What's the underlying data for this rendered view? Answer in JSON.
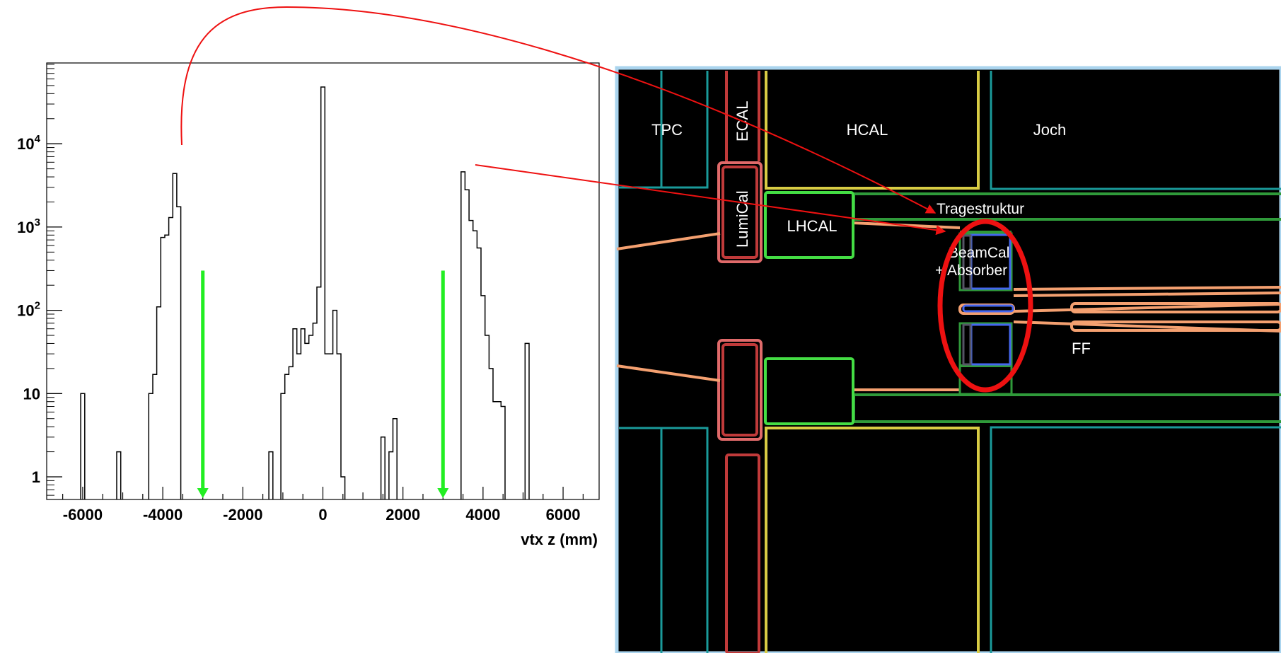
{
  "chart_data": {
    "type": "histogram",
    "xlabel": "vtx z (mm)",
    "ylabel": "",
    "title": "",
    "xlim": [
      -6900,
      6900
    ],
    "ylim": [
      0.5,
      100000
    ],
    "yscale": "log",
    "grid": false,
    "x_tick_labels": [
      "-6000",
      "-4000",
      "-2000",
      "0",
      "2000",
      "4000",
      "6000"
    ],
    "x_tick_values": [
      -6000,
      -4000,
      -2000,
      0,
      2000,
      4000,
      6000
    ],
    "y_tick_labels": [
      {
        "base": "1",
        "exp": ""
      },
      {
        "base": "10",
        "exp": ""
      },
      {
        "base": "10",
        "exp": "2"
      },
      {
        "base": "10",
        "exp": "3"
      },
      {
        "base": "10",
        "exp": "4"
      }
    ],
    "y_tick_values": [
      1,
      10,
      100,
      1000,
      10000
    ],
    "bin_width": 100,
    "bins": [
      {
        "x": -6000,
        "count": 10
      },
      {
        "x": -5100,
        "count": 2
      },
      {
        "x": -4300,
        "count": 10
      },
      {
        "x": -4200,
        "count": 17
      },
      {
        "x": -4100,
        "count": 110
      },
      {
        "x": -4000,
        "count": 750
      },
      {
        "x": -3900,
        "count": 800
      },
      {
        "x": -3800,
        "count": 1300
      },
      {
        "x": -3700,
        "count": 4400
      },
      {
        "x": -3600,
        "count": 1750
      },
      {
        "x": -1300,
        "count": 2
      },
      {
        "x": -1000,
        "count": 10
      },
      {
        "x": -900,
        "count": 17
      },
      {
        "x": -800,
        "count": 21
      },
      {
        "x": -700,
        "count": 60
      },
      {
        "x": -600,
        "count": 30
      },
      {
        "x": -500,
        "count": 60
      },
      {
        "x": -400,
        "count": 40
      },
      {
        "x": -300,
        "count": 50
      },
      {
        "x": -200,
        "count": 70
      },
      {
        "x": -100,
        "count": 190
      },
      {
        "x": 0,
        "count": 48000
      },
      {
        "x": 100,
        "count": 30
      },
      {
        "x": 200,
        "count": 30
      },
      {
        "x": 300,
        "count": 100
      },
      {
        "x": 400,
        "count": 30
      },
      {
        "x": 500,
        "count": 1
      },
      {
        "x": 1500,
        "count": 3
      },
      {
        "x": 1700,
        "count": 2
      },
      {
        "x": 1800,
        "count": 5
      },
      {
        "x": 3500,
        "count": 4600
      },
      {
        "x": 3600,
        "count": 2800
      },
      {
        "x": 3700,
        "count": 1200
      },
      {
        "x": 3800,
        "count": 900
      },
      {
        "x": 3900,
        "count": 560
      },
      {
        "x": 4000,
        "count": 150
      },
      {
        "x": 4100,
        "count": 50
      },
      {
        "x": 4200,
        "count": 20
      },
      {
        "x": 4300,
        "count": 8
      },
      {
        "x": 4400,
        "count": 8
      },
      {
        "x": 4500,
        "count": 7
      },
      {
        "x": 5100,
        "count": 40
      }
    ],
    "cut_markers": [
      {
        "x": -3000,
        "from_y": 300,
        "to_y": 0.5,
        "color": "#22ee22"
      },
      {
        "x": 3000,
        "from_y": 300,
        "to_y": 0.5,
        "color": "#22ee22"
      }
    ]
  },
  "detector": {
    "labels": {
      "tpc": "TPC",
      "ecal": "ECAL",
      "hcal": "HCAL",
      "joch": "Joch",
      "lumical": "LumiCal",
      "lhcal": "LHCAL",
      "tragestruktur": "Tragestruktur",
      "beamcal_line1": "BeamCal",
      "beamcal_line2": "+ Absorber",
      "ff": "FF"
    },
    "colors": {
      "background": "#000000",
      "frame": "#aad4ee",
      "cyan": "#1a9a9a",
      "yellow": "#d8cc44",
      "green": "#44dd44",
      "dark_green": "#2f9a3a",
      "red": "#c03a3a",
      "orange": "#f4a070",
      "blue": "#4466ee"
    }
  },
  "annotation_colors": {
    "arrow": "#ee1111",
    "ellipse": "#ee1111"
  }
}
